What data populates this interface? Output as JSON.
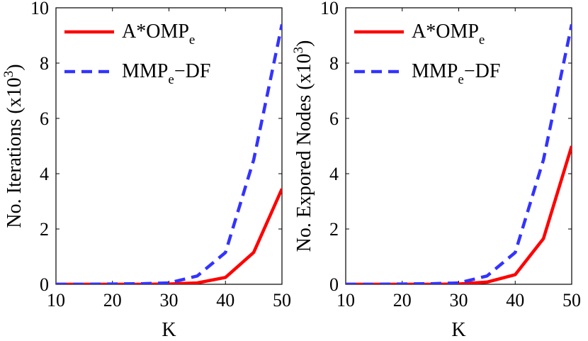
{
  "chart_data": [
    {
      "type": "line",
      "title": "",
      "xlabel": "K",
      "ylabel": "No. Iterations (x10",
      "ylabel_exp": "3",
      "ylabel_close": ")",
      "xlim": [
        10,
        50
      ],
      "ylim": [
        0,
        10
      ],
      "xticks": [
        10,
        20,
        30,
        40,
        50
      ],
      "yticks": [
        0,
        2,
        4,
        6,
        8,
        10
      ],
      "grid": false,
      "legend_position": "top-left",
      "series": [
        {
          "name": "A*OMP",
          "sub": "e",
          "suffix": "",
          "color": "#ff0000",
          "dashed": false,
          "x": [
            10,
            15,
            20,
            25,
            30,
            35,
            40,
            45,
            50
          ],
          "values": [
            0,
            0,
            0,
            0,
            0.01,
            0.05,
            0.25,
            1.15,
            3.45
          ]
        },
        {
          "name": "MMP",
          "sub": "e",
          "suffix": "−DF",
          "color": "#3333ff",
          "dashed": true,
          "x": [
            10,
            15,
            20,
            25,
            30,
            35,
            40,
            45,
            50
          ],
          "values": [
            0,
            0,
            0.01,
            0.02,
            0.05,
            0.3,
            1.15,
            4.5,
            9.4
          ]
        }
      ]
    },
    {
      "type": "line",
      "title": "",
      "xlabel": "K",
      "ylabel": "No. Expored Nodes (x10",
      "ylabel_exp": "3",
      "ylabel_close": ")",
      "xlim": [
        10,
        50
      ],
      "ylim": [
        0,
        10
      ],
      "xticks": [
        10,
        20,
        30,
        40,
        50
      ],
      "yticks": [
        0,
        2,
        4,
        6,
        8,
        10
      ],
      "grid": false,
      "legend_position": "top-left",
      "series": [
        {
          "name": "A*OMP",
          "sub": "e",
          "suffix": "",
          "color": "#ff0000",
          "dashed": false,
          "x": [
            10,
            15,
            20,
            25,
            30,
            35,
            40,
            45,
            50
          ],
          "values": [
            0,
            0,
            0,
            0,
            0.01,
            0.08,
            0.35,
            1.65,
            5.0
          ]
        },
        {
          "name": "MMP",
          "sub": "e",
          "suffix": "−DF",
          "color": "#3333ff",
          "dashed": true,
          "x": [
            10,
            15,
            20,
            25,
            30,
            35,
            40,
            45,
            50
          ],
          "values": [
            0,
            0,
            0.01,
            0.02,
            0.05,
            0.3,
            1.15,
            4.5,
            9.4
          ]
        }
      ]
    }
  ]
}
